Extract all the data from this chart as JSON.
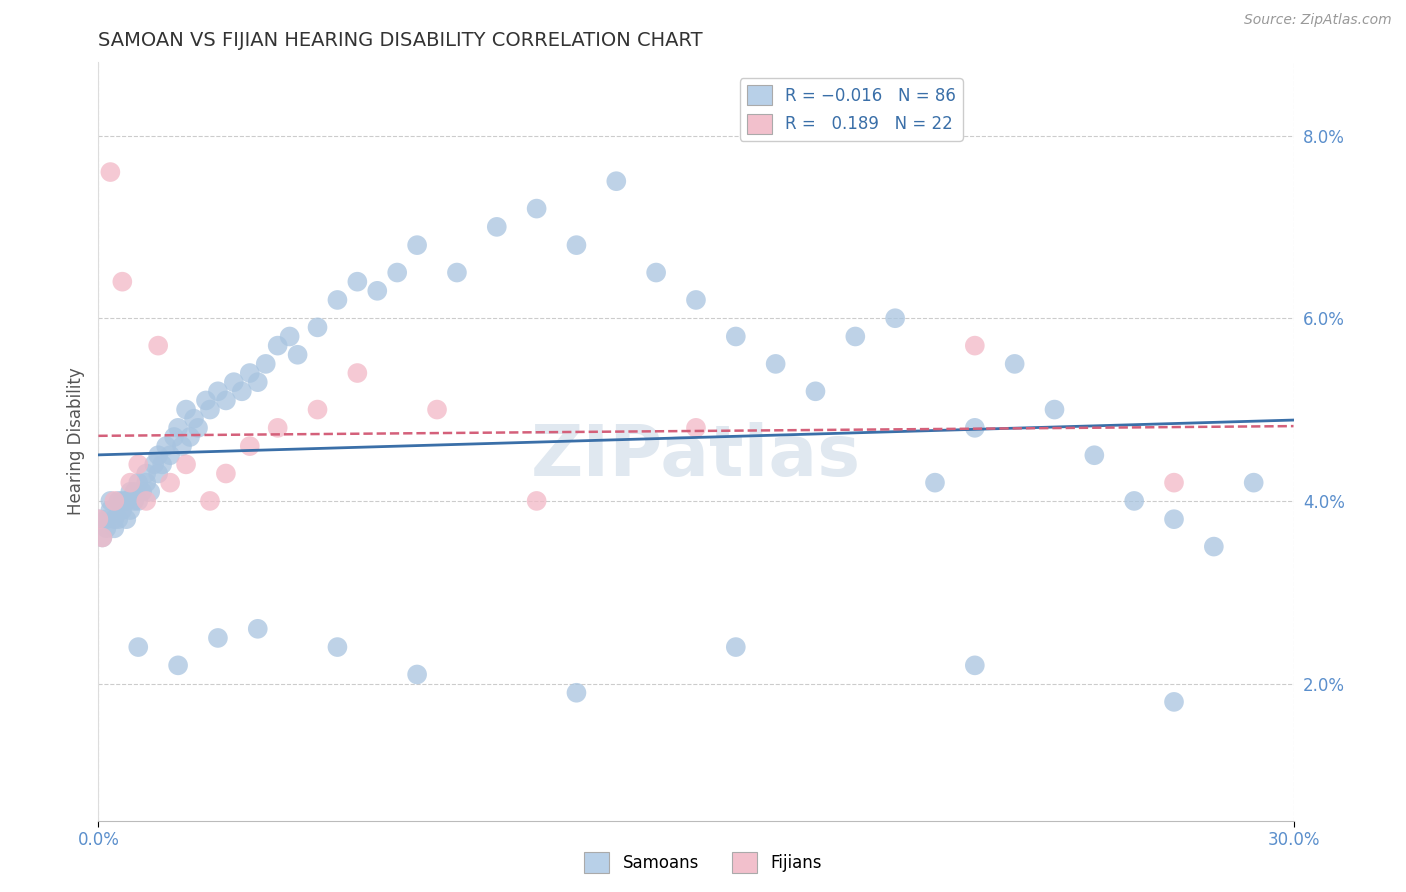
{
  "title": "SAMOAN VS FIJIAN HEARING DISABILITY CORRELATION CHART",
  "source": "Source: ZipAtlas.com",
  "ylabel": "Hearing Disability",
  "xmin": 0.0,
  "xmax": 0.3,
  "ymin": 0.005,
  "ymax": 0.088,
  "yticks": [
    0.02,
    0.04,
    0.06,
    0.08
  ],
  "ytick_labels": [
    "2.0%",
    "4.0%",
    "6.0%",
    "8.0%"
  ],
  "xtick_labels": [
    "0.0%",
    "30.0%"
  ],
  "xtick_vals": [
    0.0,
    0.3
  ],
  "samoans_R": -0.016,
  "samoans_N": 86,
  "fijians_R": 0.189,
  "fijians_N": 22,
  "samoans_color": "#a8c4e0",
  "fijians_color": "#f2b8c6",
  "samoans_line_color": "#3a6fa8",
  "fijians_line_color": "#d4607a",
  "tick_label_color": "#5b8fcc",
  "title_color": "#333333",
  "source_color": "#999999",
  "grid_color": "#cccccc",
  "watermark": "ZIPatlas",
  "watermark_color": "#e0e8f0",
  "legend_box_color_sam": "#b8d0e8",
  "legend_box_color_fij": "#f2c0cc",
  "sam_x": [
    0.0,
    0.001,
    0.002,
    0.002,
    0.003,
    0.003,
    0.004,
    0.004,
    0.005,
    0.005,
    0.006,
    0.006,
    0.007,
    0.007,
    0.008,
    0.008,
    0.009,
    0.009,
    0.01,
    0.01,
    0.011,
    0.012,
    0.012,
    0.013,
    0.014,
    0.015,
    0.015,
    0.016,
    0.017,
    0.018,
    0.019,
    0.02,
    0.021,
    0.022,
    0.023,
    0.024,
    0.025,
    0.027,
    0.028,
    0.03,
    0.032,
    0.034,
    0.036,
    0.038,
    0.04,
    0.042,
    0.045,
    0.048,
    0.05,
    0.055,
    0.06,
    0.065,
    0.07,
    0.075,
    0.08,
    0.09,
    0.1,
    0.11,
    0.12,
    0.13,
    0.14,
    0.15,
    0.16,
    0.17,
    0.18,
    0.19,
    0.2,
    0.21,
    0.22,
    0.23,
    0.24,
    0.25,
    0.26,
    0.27,
    0.28,
    0.29,
    0.01,
    0.02,
    0.03,
    0.04,
    0.06,
    0.08,
    0.12,
    0.16,
    0.22,
    0.27
  ],
  "sam_y": [
    0.038,
    0.036,
    0.038,
    0.037,
    0.04,
    0.039,
    0.038,
    0.037,
    0.04,
    0.038,
    0.039,
    0.04,
    0.038,
    0.04,
    0.041,
    0.039,
    0.04,
    0.041,
    0.042,
    0.04,
    0.041,
    0.043,
    0.042,
    0.041,
    0.044,
    0.043,
    0.045,
    0.044,
    0.046,
    0.045,
    0.047,
    0.048,
    0.046,
    0.05,
    0.047,
    0.049,
    0.048,
    0.051,
    0.05,
    0.052,
    0.051,
    0.053,
    0.052,
    0.054,
    0.053,
    0.055,
    0.057,
    0.058,
    0.056,
    0.059,
    0.062,
    0.064,
    0.063,
    0.065,
    0.068,
    0.065,
    0.07,
    0.072,
    0.068,
    0.075,
    0.065,
    0.062,
    0.058,
    0.055,
    0.052,
    0.058,
    0.06,
    0.042,
    0.048,
    0.055,
    0.05,
    0.045,
    0.04,
    0.038,
    0.035,
    0.042,
    0.024,
    0.022,
    0.025,
    0.026,
    0.024,
    0.021,
    0.019,
    0.024,
    0.022,
    0.018
  ],
  "fij_x": [
    0.0,
    0.001,
    0.003,
    0.004,
    0.006,
    0.008,
    0.01,
    0.012,
    0.015,
    0.018,
    0.022,
    0.028,
    0.032,
    0.038,
    0.045,
    0.055,
    0.065,
    0.085,
    0.11,
    0.15,
    0.22,
    0.27
  ],
  "fij_y": [
    0.038,
    0.036,
    0.076,
    0.04,
    0.064,
    0.042,
    0.044,
    0.04,
    0.057,
    0.042,
    0.044,
    0.04,
    0.043,
    0.046,
    0.048,
    0.05,
    0.054,
    0.05,
    0.04,
    0.048,
    0.057,
    0.042
  ]
}
